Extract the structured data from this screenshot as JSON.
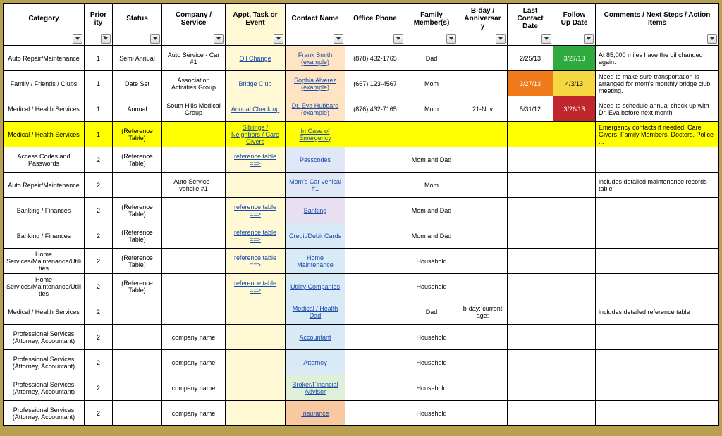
{
  "headers": [
    {
      "key": "category",
      "label": "Category",
      "filter": true
    },
    {
      "key": "priority",
      "label": "Priority",
      "filter": true,
      "sort": true
    },
    {
      "key": "status",
      "label": "Status",
      "filter": true
    },
    {
      "key": "company",
      "label": "Company / Service",
      "filter": true
    },
    {
      "key": "appt",
      "label": "Appt, Task or Event",
      "filter": true
    },
    {
      "key": "contact",
      "label": "Contact Name",
      "filter": true
    },
    {
      "key": "phone",
      "label": "Office Phone",
      "filter": true
    },
    {
      "key": "family",
      "label": "Family Member(s)",
      "filter": true
    },
    {
      "key": "bday",
      "label": "B-day / Anniversary",
      "filter": true
    },
    {
      "key": "last",
      "label": "Last Contact Date",
      "filter": true
    },
    {
      "key": "followup",
      "label": "Follow Up Date",
      "filter": true
    },
    {
      "key": "comments",
      "label": "Comments / Next Steps / Action Items",
      "filter": true
    }
  ],
  "colors": {
    "yellow_row": "#ffff00",
    "pale_yellow": "#fff9d6",
    "pale_orange": "#ffe4c4",
    "pale_blue": "#e0e8f8",
    "pale_lav": "#e8e0f0",
    "lighter_blue": "#d8eaf5",
    "lighter_green": "#e0f0d8",
    "light_orange": "#f8c8a0",
    "green_cell": "#2eaa3e",
    "orange_cell": "#f07a1a",
    "yellow_cell": "#f5d742",
    "red_cell": "#c0262c",
    "white_text": "#ffffff"
  },
  "rows": [
    {
      "category": "Auto Repair/Maintenance",
      "priority": "1",
      "status": "Semi Annual",
      "company": "Auto Service - Car #1",
      "appt": {
        "text": "Oil Change",
        "link": true
      },
      "contact": {
        "text": "Frank Smith (example)",
        "link": true,
        "bg": "pale_orange"
      },
      "phone": "(878) 432-1765",
      "family": "Dad",
      "bday": "",
      "last": "2/25/13",
      "followup": {
        "text": "3/27/13",
        "bg": "green_cell",
        "color": "white_text"
      },
      "comments": "At 85,000 miles have the oil changed again."
    },
    {
      "category": "Family / Friends / Clubs",
      "priority": "1",
      "status": "Date Set",
      "company": "Association Activities Group",
      "appt": {
        "text": "Bridge Club",
        "link": true
      },
      "contact": {
        "text": "Sophia Alverez (example)",
        "link": true,
        "bg": "pale_orange"
      },
      "phone": "(667) 123-4567",
      "family": "Mom",
      "bday": "",
      "last": {
        "text": "3/27/13",
        "bg": "orange_cell",
        "color": "white_text"
      },
      "followup": {
        "text": "4/3/13",
        "bg": "yellow_cell"
      },
      "comments": "Need to make sure transportation is arranged for mom's monthly bridge club meeting."
    },
    {
      "category": "Medical / Health Services",
      "priority": "1",
      "status": "Annual",
      "company": "South Hills Medical Group",
      "appt": {
        "text": "Annual Check up",
        "link": true
      },
      "contact": {
        "text": "Dr. Eva Hubbard (example)",
        "link": true,
        "bg": "pale_orange"
      },
      "phone": "(876) 432-7165",
      "family": "Mom",
      "bday": "21-Nov",
      "last": "5/31/12",
      "followup": {
        "text": "3/26/13",
        "bg": "red_cell",
        "color": "white_text"
      },
      "comments": "Need to schedule annual check up with Dr. Eva before next month"
    },
    {
      "row_bg": "yellow_row",
      "category": "Medical / Health Services",
      "priority": "1",
      "status": "(Reference Table)",
      "company": "",
      "appt": {
        "text": "Siblings / Neighbors / Care Givers",
        "link": true
      },
      "contact": {
        "text": "In Case of Emergency",
        "link": true
      },
      "phone": "",
      "family": "",
      "bday": "",
      "last": "",
      "followup": "",
      "comments": "Emergency contacts if needed: Care Givers, Family Members, Doctors, Police ..."
    },
    {
      "category": "Access Codes and Passwords",
      "priority": "2",
      "status": "(Reference Table)",
      "company": "",
      "appt": {
        "text": "reference table ==>",
        "link": true
      },
      "contact": {
        "text": "Passcodes",
        "link": true,
        "bg": "pale_blue"
      },
      "phone": "",
      "family": "Mom and Dad",
      "bday": "",
      "last": "",
      "followup": "",
      "comments": ""
    },
    {
      "category": "Auto Repair/Maintenance",
      "priority": "2",
      "status": "",
      "company": "Auto Service - vehcile #1",
      "appt": "",
      "contact": {
        "text": "Mom's Car vehical #1",
        "link": true,
        "bg": "pale_blue"
      },
      "phone": "",
      "family": "Mom",
      "bday": "",
      "last": "",
      "followup": "",
      "comments": "includes detailed maintenance records table"
    },
    {
      "category": "Banking / Finances",
      "priority": "2",
      "status": "(Reference Table)",
      "company": "",
      "appt": {
        "text": "reference table ==>",
        "link": true
      },
      "contact": {
        "text": "Banking",
        "link": true,
        "bg": "pale_lav"
      },
      "phone": "",
      "family": "Mom and Dad",
      "bday": "",
      "last": "",
      "followup": "",
      "comments": ""
    },
    {
      "category": "Banking / Finances",
      "priority": "2",
      "status": "(Reference Table)",
      "company": "",
      "appt": {
        "text": "reference table ==>",
        "link": true
      },
      "contact": {
        "text": "Credit/Debit Cards",
        "link": true,
        "bg": "lighter_blue"
      },
      "phone": "",
      "family": "Mom and Dad",
      "bday": "",
      "last": "",
      "followup": "",
      "comments": ""
    },
    {
      "category": "Home Services/Maintenance/Utilities",
      "priority": "2",
      "status": "(Reference Table)",
      "company": "",
      "appt": {
        "text": "reference table ==>",
        "link": true
      },
      "contact": {
        "text": "Home Maintenance",
        "link": true,
        "bg": "lighter_blue"
      },
      "phone": "",
      "family": "Household",
      "bday": "",
      "last": "",
      "followup": "",
      "comments": ""
    },
    {
      "category": "Home Services/Maintenance/Utilities",
      "priority": "2",
      "status": "(Reference Table)",
      "company": "",
      "appt": {
        "text": "reference table ==>",
        "link": true
      },
      "contact": {
        "text": "Utility Companies",
        "link": true,
        "bg": "lighter_blue"
      },
      "phone": "",
      "family": "Household",
      "bday": "",
      "last": "",
      "followup": "",
      "comments": ""
    },
    {
      "category": "Medical / Health Services",
      "priority": "2",
      "status": "",
      "company": "",
      "appt": "",
      "contact": {
        "text": "Medical / Health Dad",
        "link": true,
        "bg": "lighter_blue"
      },
      "phone": "",
      "family": "Dad",
      "bday": "b-day: current age:",
      "last": "",
      "followup": "",
      "comments": "includes detailed reference table"
    },
    {
      "category": "Professional Services (Attorney, Accountant)",
      "priority": "2",
      "status": "",
      "company": "company name",
      "appt": "",
      "contact": {
        "text": "Accountant",
        "link": true,
        "bg": "lighter_blue"
      },
      "phone": "",
      "family": "Household",
      "bday": "",
      "last": "",
      "followup": "",
      "comments": ""
    },
    {
      "category": "Professional Services (Attorney, Accountant)",
      "priority": "2",
      "status": "",
      "company": "company name",
      "appt": "",
      "contact": {
        "text": "Attorney",
        "link": true,
        "bg": "lighter_blue"
      },
      "phone": "",
      "family": "Household",
      "bday": "",
      "last": "",
      "followup": "",
      "comments": ""
    },
    {
      "category": "Professional Services (Attorney, Accountant)",
      "priority": "2",
      "status": "",
      "company": "company name",
      "appt": "",
      "contact": {
        "text": "Broker/Financial Advisor",
        "link": true,
        "bg": "lighter_green"
      },
      "phone": "",
      "family": "Household",
      "bday": "",
      "last": "",
      "followup": "",
      "comments": ""
    },
    {
      "category": "Professional Services (Attorney, Accountant)",
      "priority": "2",
      "status": "",
      "company": "company name",
      "appt": "",
      "contact": {
        "text": "Insurance",
        "link": true,
        "bg": "light_orange"
      },
      "phone": "",
      "family": "Household",
      "bday": "",
      "last": "",
      "followup": "",
      "comments": ""
    }
  ]
}
